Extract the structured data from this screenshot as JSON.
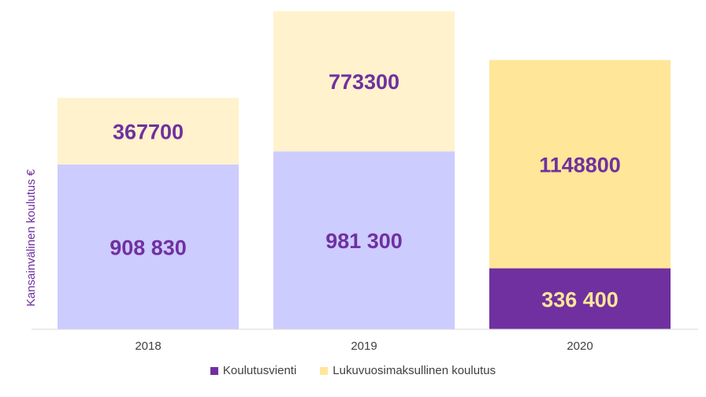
{
  "chart_data": {
    "type": "bar",
    "stacked": true,
    "categories": [
      "2018",
      "2019",
      "2020"
    ],
    "series": [
      {
        "name": "Koulutusvienti",
        "values": [
          908830,
          981300,
          336400
        ],
        "labels": [
          "908 830",
          "981 300",
          "336 400"
        ]
      },
      {
        "name": "Lukuvuosimaksullinen koulutus",
        "values": [
          367700,
          773300,
          1148800
        ],
        "labels": [
          "367700",
          "773300",
          "1148800"
        ]
      }
    ],
    "segment_colors": [
      [
        "#ccccff",
        "#ccccff",
        "#7030a0"
      ],
      [
        "#fff2cc",
        "#fff2cc",
        "#ffe699"
      ]
    ],
    "label_colors": [
      [
        "#7030a0",
        "#7030a0",
        "#ffe699"
      ],
      [
        "#7030a0",
        "#7030a0",
        "#7030a0"
      ]
    ],
    "legend_colors": [
      "#7030a0",
      "#ffe699"
    ],
    "ylabel": "Kansainvälinen koulutus €",
    "ylim": [
      0,
      1760000
    ],
    "grid": false,
    "legend_position": "bottom"
  }
}
